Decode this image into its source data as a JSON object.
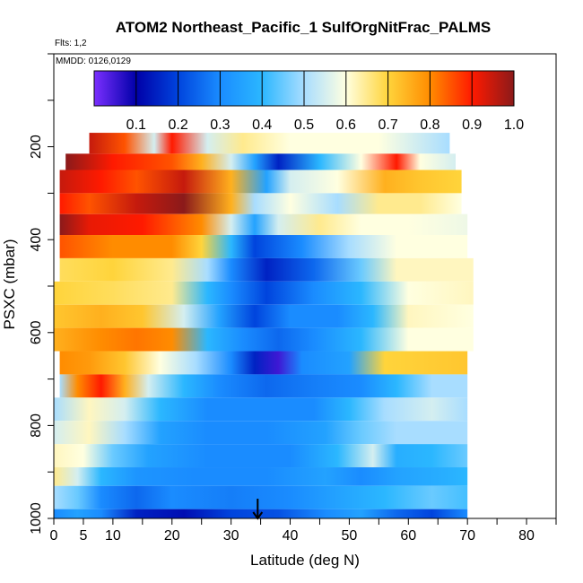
{
  "header": {
    "title": "ATOM2 Northeast_Pacific_1 SulfOrgNitFrac_PALMS",
    "flights": "Flts: 1,2",
    "mmdd": "MMDD: 0126,0129"
  },
  "chart_data": {
    "type": "heatmap",
    "title": "ATOM2 Northeast_Pacific_1 SulfOrgNitFrac_PALMS",
    "xlabel": "Latitude (deg N)",
    "ylabel": "PSXC (mbar)",
    "xlim": [
      0,
      85
    ],
    "ylim": [
      1000,
      0
    ],
    "x_ticks": [
      0,
      5,
      10,
      20,
      30,
      40,
      50,
      60,
      70,
      80
    ],
    "y_ticks": [
      200,
      400,
      600,
      800,
      1000
    ],
    "colorbar": {
      "ticks": [
        "0.1",
        "0.2",
        "0.3",
        "0.4",
        "0.5",
        "0.6",
        "0.7",
        "0.8",
        "0.9",
        "1.0"
      ],
      "range": [
        0,
        1
      ],
      "colors": [
        "#7b2fff",
        "#0000a8",
        "#0044dd",
        "#1a8cff",
        "#2bb7ff",
        "#a8ddff",
        "#ffffe0",
        "#ffd43b",
        "#ff8c00",
        "#ff1a00",
        "#8b1a1a"
      ]
    },
    "marker": {
      "type": "arrow",
      "latitude": 34.5,
      "label": ""
    },
    "rows": [
      {
        "pmin": 170,
        "pmax": 215,
        "latmin": 6,
        "latmax": 67,
        "stops": [
          [
            6,
            0.95
          ],
          [
            12,
            0.85
          ],
          [
            17,
            0.55
          ],
          [
            20,
            0.9
          ],
          [
            26,
            0.55
          ],
          [
            32,
            0.65
          ],
          [
            40,
            0.6
          ],
          [
            55,
            0.6
          ],
          [
            67,
            0.5
          ]
        ]
      },
      {
        "pmin": 215,
        "pmax": 250,
        "latmin": 2,
        "latmax": 68,
        "stops": [
          [
            2,
            1.0
          ],
          [
            10,
            0.9
          ],
          [
            20,
            0.85
          ],
          [
            25,
            0.75
          ],
          [
            30,
            0.55
          ],
          [
            34,
            0.35
          ],
          [
            38,
            0.15
          ],
          [
            45,
            0.4
          ],
          [
            52,
            0.6
          ],
          [
            58,
            0.9
          ],
          [
            62,
            0.6
          ],
          [
            68,
            0.55
          ]
        ]
      },
      {
        "pmin": 250,
        "pmax": 300,
        "latmin": 1,
        "latmax": 69,
        "stops": [
          [
            1,
            0.95
          ],
          [
            8,
            0.9
          ],
          [
            14,
            0.85
          ],
          [
            22,
            0.95
          ],
          [
            30,
            0.75
          ],
          [
            36,
            0.35
          ],
          [
            40,
            0.55
          ],
          [
            48,
            0.6
          ],
          [
            56,
            0.75
          ],
          [
            62,
            0.72
          ],
          [
            69,
            0.7
          ]
        ]
      },
      {
        "pmin": 300,
        "pmax": 345,
        "latmin": 1,
        "latmax": 69,
        "stops": [
          [
            1,
            0.9
          ],
          [
            6,
            0.85
          ],
          [
            14,
            0.95
          ],
          [
            22,
            1.0
          ],
          [
            30,
            0.75
          ],
          [
            34,
            0.5
          ],
          [
            40,
            0.6
          ],
          [
            48,
            0.5
          ],
          [
            55,
            0.65
          ],
          [
            62,
            0.65
          ],
          [
            69,
            0.6
          ]
        ]
      },
      {
        "pmin": 345,
        "pmax": 390,
        "latmin": 1,
        "latmax": 70,
        "stops": [
          [
            1,
            1.0
          ],
          [
            6,
            0.92
          ],
          [
            15,
            0.9
          ],
          [
            25,
            0.8
          ],
          [
            30,
            0.55
          ],
          [
            34,
            0.35
          ],
          [
            38,
            0.55
          ],
          [
            45,
            0.65
          ],
          [
            52,
            0.6
          ],
          [
            60,
            0.6
          ],
          [
            70,
            0.58
          ]
        ]
      },
      {
        "pmin": 390,
        "pmax": 440,
        "latmin": 1,
        "latmax": 70,
        "stops": [
          [
            1,
            0.85
          ],
          [
            10,
            0.8
          ],
          [
            20,
            0.8
          ],
          [
            25,
            0.7
          ],
          [
            30,
            0.4
          ],
          [
            34,
            0.2
          ],
          [
            42,
            0.3
          ],
          [
            50,
            0.5
          ],
          [
            58,
            0.6
          ],
          [
            70,
            0.6
          ]
        ]
      },
      {
        "pmin": 440,
        "pmax": 490,
        "latmin": 1,
        "latmax": 71,
        "stops": [
          [
            1,
            0.68
          ],
          [
            10,
            0.7
          ],
          [
            20,
            0.65
          ],
          [
            26,
            0.5
          ],
          [
            30,
            0.3
          ],
          [
            36,
            0.15
          ],
          [
            44,
            0.25
          ],
          [
            52,
            0.45
          ],
          [
            58,
            0.62
          ],
          [
            71,
            0.62
          ]
        ]
      },
      {
        "pmin": 490,
        "pmax": 540,
        "latmin": 0,
        "latmax": 71,
        "stops": [
          [
            0,
            0.7
          ],
          [
            10,
            0.68
          ],
          [
            20,
            0.65
          ],
          [
            26,
            0.4
          ],
          [
            30,
            0.3
          ],
          [
            36,
            0.2
          ],
          [
            44,
            0.3
          ],
          [
            52,
            0.4
          ],
          [
            60,
            0.6
          ],
          [
            71,
            0.62
          ]
        ]
      },
      {
        "pmin": 540,
        "pmax": 590,
        "latmin": 0,
        "latmax": 71,
        "stops": [
          [
            0,
            0.72
          ],
          [
            8,
            0.75
          ],
          [
            15,
            0.72
          ],
          [
            22,
            0.55
          ],
          [
            28,
            0.35
          ],
          [
            34,
            0.2
          ],
          [
            40,
            0.3
          ],
          [
            48,
            0.3
          ],
          [
            54,
            0.4
          ],
          [
            60,
            0.62
          ],
          [
            71,
            0.6
          ]
        ]
      },
      {
        "pmin": 590,
        "pmax": 640,
        "latmin": 0,
        "latmax": 71,
        "stops": [
          [
            0,
            0.75
          ],
          [
            8,
            0.8
          ],
          [
            14,
            0.82
          ],
          [
            20,
            0.8
          ],
          [
            26,
            0.4
          ],
          [
            32,
            0.3
          ],
          [
            38,
            0.25
          ],
          [
            44,
            0.3
          ],
          [
            52,
            0.4
          ],
          [
            60,
            0.6
          ],
          [
            71,
            0.6
          ]
        ]
      },
      {
        "pmin": 640,
        "pmax": 690,
        "latmin": 1,
        "latmax": 70,
        "stops": [
          [
            1,
            0.8
          ],
          [
            6,
            0.78
          ],
          [
            12,
            0.72
          ],
          [
            18,
            0.6
          ],
          [
            24,
            0.5
          ],
          [
            30,
            0.3
          ],
          [
            34,
            0.15
          ],
          [
            38,
            0.05
          ],
          [
            42,
            0.3
          ],
          [
            50,
            0.35
          ],
          [
            56,
            0.7
          ],
          [
            70,
            0.72
          ]
        ]
      },
      {
        "pmin": 690,
        "pmax": 740,
        "latmin": 1,
        "latmax": 70,
        "stops": [
          [
            1,
            0.5
          ],
          [
            4,
            0.8
          ],
          [
            8,
            0.9
          ],
          [
            12,
            0.75
          ],
          [
            16,
            0.55
          ],
          [
            22,
            0.4
          ],
          [
            28,
            0.3
          ],
          [
            36,
            0.25
          ],
          [
            44,
            0.28
          ],
          [
            52,
            0.3
          ],
          [
            58,
            0.4
          ],
          [
            64,
            0.5
          ],
          [
            70,
            0.5
          ]
        ]
      },
      {
        "pmin": 740,
        "pmax": 790,
        "latmin": 0,
        "latmax": 70,
        "stops": [
          [
            0,
            0.5
          ],
          [
            6,
            0.62
          ],
          [
            12,
            0.55
          ],
          [
            18,
            0.4
          ],
          [
            26,
            0.3
          ],
          [
            36,
            0.3
          ],
          [
            44,
            0.3
          ],
          [
            50,
            0.4
          ],
          [
            56,
            0.5
          ],
          [
            64,
            0.55
          ],
          [
            70,
            0.5
          ]
        ]
      },
      {
        "pmin": 790,
        "pmax": 840,
        "latmin": 0,
        "latmax": 70,
        "stops": [
          [
            0,
            0.55
          ],
          [
            6,
            0.62
          ],
          [
            12,
            0.5
          ],
          [
            18,
            0.35
          ],
          [
            26,
            0.3
          ],
          [
            36,
            0.3
          ],
          [
            46,
            0.35
          ],
          [
            52,
            0.45
          ],
          [
            58,
            0.5
          ],
          [
            70,
            0.5
          ]
        ]
      },
      {
        "pmin": 840,
        "pmax": 890,
        "latmin": 0,
        "latmax": 70,
        "stops": [
          [
            0,
            0.62
          ],
          [
            5,
            0.6
          ],
          [
            10,
            0.45
          ],
          [
            16,
            0.35
          ],
          [
            26,
            0.3
          ],
          [
            40,
            0.3
          ],
          [
            48,
            0.4
          ],
          [
            54,
            0.55
          ],
          [
            58,
            0.38
          ],
          [
            64,
            0.4
          ],
          [
            70,
            0.45
          ]
        ]
      },
      {
        "pmin": 890,
        "pmax": 930,
        "latmin": 0,
        "latmax": 70,
        "stops": [
          [
            0,
            0.65
          ],
          [
            4,
            0.55
          ],
          [
            8,
            0.4
          ],
          [
            14,
            0.32
          ],
          [
            24,
            0.3
          ],
          [
            36,
            0.3
          ],
          [
            46,
            0.35
          ],
          [
            52,
            0.3
          ],
          [
            58,
            0.35
          ],
          [
            66,
            0.38
          ],
          [
            70,
            0.4
          ]
        ]
      },
      {
        "pmin": 930,
        "pmax": 980,
        "latmin": 0,
        "latmax": 70,
        "stops": [
          [
            0,
            0.5
          ],
          [
            4,
            0.45
          ],
          [
            8,
            0.3
          ],
          [
            14,
            0.25
          ],
          [
            20,
            0.3
          ],
          [
            30,
            0.28
          ],
          [
            40,
            0.3
          ],
          [
            48,
            0.35
          ],
          [
            56,
            0.4
          ],
          [
            64,
            0.45
          ],
          [
            70,
            0.42
          ]
        ]
      },
      {
        "pmin": 980,
        "pmax": 1020,
        "latmin": 0,
        "latmax": 70,
        "stops": [
          [
            0,
            0.3
          ],
          [
            4,
            0.35
          ],
          [
            8,
            0.3
          ],
          [
            14,
            0.15
          ],
          [
            22,
            0.12
          ],
          [
            30,
            0.2
          ],
          [
            38,
            0.22
          ],
          [
            46,
            0.3
          ],
          [
            52,
            0.35
          ],
          [
            58,
            0.25
          ],
          [
            64,
            0.2
          ],
          [
            70,
            0.3
          ]
        ]
      }
    ]
  }
}
